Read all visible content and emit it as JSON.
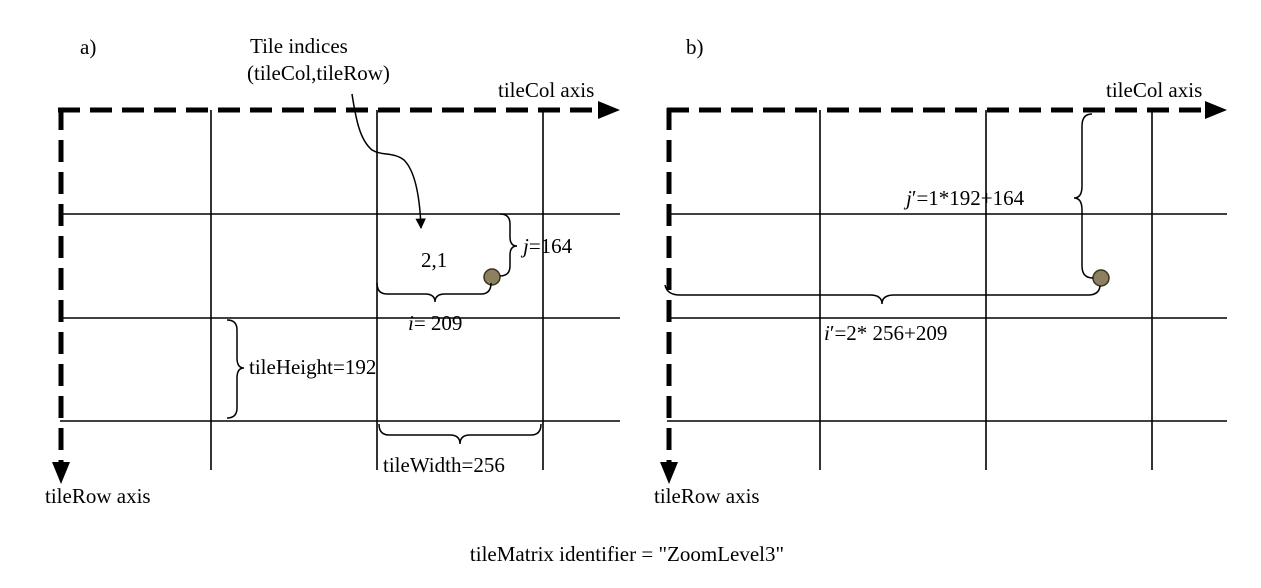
{
  "caption": "tileMatrix identifier = \"ZoomLevel3\"",
  "panel_a": {
    "label": "a)",
    "tile_indices_line1": "Tile indices",
    "tile_indices_line2": "(tileCol,tileRow)",
    "col_axis_label": "tileCol axis",
    "row_axis_label": "tileRow axis",
    "tile_index_value": "2,1",
    "j_symbol": "j",
    "j_value": "=164",
    "i_symbol": "i",
    "i_value": "= 209",
    "tile_height": "tileHeight=192",
    "tile_width": "tileWidth=256"
  },
  "panel_b": {
    "label": "b)",
    "col_axis_label": "tileCol axis",
    "row_axis_label": "tileRow axis",
    "j_symbol": "j",
    "j_prime": "′",
    "j_value": "=1*192+164",
    "i_symbol": "i",
    "i_prime": "′",
    "i_value": "=2* 256+209"
  },
  "colors": {
    "line": "#000000",
    "point_fill": "#8c8060",
    "point_stroke": "#3a3320"
  }
}
